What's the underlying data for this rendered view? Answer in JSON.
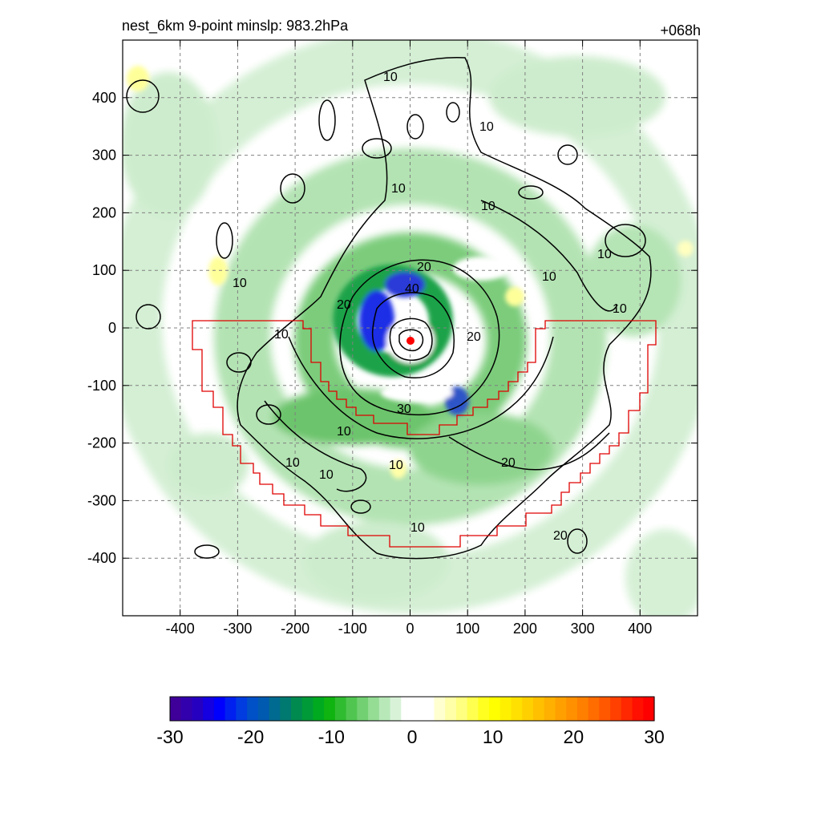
{
  "title_left": "nest_6km  9-point minslp: 983.2hPa",
  "title_right": "+068h",
  "map": {
    "x_ticks": [
      -400,
      -300,
      -200,
      -100,
      0,
      100,
      200,
      300,
      400
    ],
    "y_ticks": [
      400,
      300,
      200,
      100,
      0,
      -100,
      -200,
      -300,
      -400
    ],
    "x_range": [
      -500,
      500
    ],
    "y_range": [
      -500,
      500
    ],
    "grid": "dashed",
    "contour_labels": [
      "10",
      "10",
      "10",
      "10",
      "10",
      "10",
      "10",
      "10",
      "10",
      "10",
      "10",
      "10",
      "10",
      "10",
      "20",
      "20",
      "20",
      "20",
      "20",
      "30",
      "40"
    ],
    "center_marker_color": "#ff0000",
    "boundary_color": "#e00000"
  },
  "colorbar": {
    "ticks": [
      "-30",
      "-20",
      "-10",
      "0",
      "10",
      "20",
      "30"
    ],
    "range": [
      -30,
      30
    ],
    "colors": [
      "#3f0099",
      "#3200ad",
      "#2600c1",
      "#1400e0",
      "#0000ff",
      "#0020f0",
      "#003ce0",
      "#0050c8",
      "#005ab0",
      "#006a90",
      "#007a70",
      "#008a50",
      "#009a38",
      "#00aa20",
      "#10b410",
      "#30bc30",
      "#50c650",
      "#72d072",
      "#95dc95",
      "#b8e8b8",
      "#d8f2d8",
      "#ffffff",
      "#ffffff",
      "#ffffff",
      "#ffffd0",
      "#ffffa8",
      "#ffff80",
      "#ffff50",
      "#ffff20",
      "#ffff00",
      "#fff000",
      "#ffe000",
      "#ffd000",
      "#ffc000",
      "#ffb000",
      "#ffa000",
      "#ff9000",
      "#ff8000",
      "#ff6c00",
      "#ff5800",
      "#ff4000",
      "#ff2800",
      "#ff1000",
      "#ff0000"
    ]
  }
}
